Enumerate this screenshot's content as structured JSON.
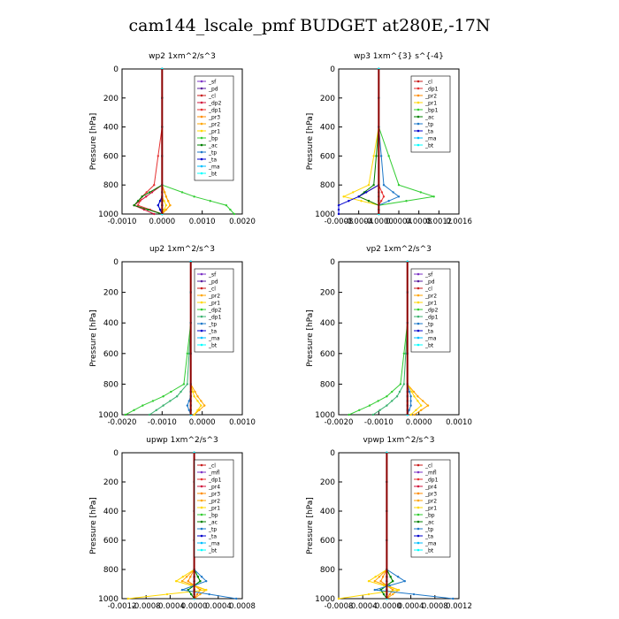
{
  "figure": {
    "title": "cam144_lscale_pmf  BUDGET at280E,-17N"
  },
  "chart_data": [
    {
      "type": "line",
      "title": "wp2   1xm^2/s^3",
      "ylabel": "Pressure [hPa]",
      "ylim": [
        1000,
        0
      ],
      "yticks": [
        "0",
        "200",
        "400",
        "600",
        "800",
        "1000"
      ],
      "xlim": [
        -0.001,
        0.002
      ],
      "xticks": [
        "-0.0010",
        "0.0000",
        "0.0010",
        "0.0020"
      ],
      "legend_position": "upper-right",
      "series": [
        {
          "name": "_sf",
          "color": "#7d33c6",
          "values": [
            0,
            0
          ]
        },
        {
          "name": "_pd",
          "color": "#5a1e9e",
          "values": [
            0,
            0
          ]
        },
        {
          "name": "_cl",
          "color": "#c81e1e",
          "values": [
            0,
            0
          ]
        },
        {
          "name": "_dp2",
          "color": "#d2143c",
          "values": [
            0,
            0,
            0,
            -0.0004,
            -0.0007,
            -0.0002
          ]
        },
        {
          "name": "_dp1",
          "color": "#e63232",
          "values": [
            0,
            0,
            -0.0002,
            -0.0005,
            -0.0006,
            0
          ]
        },
        {
          "name": "_pr3",
          "color": "#ff8c00",
          "values": [
            0,
            0,
            0,
            0.0001,
            0.0002,
            0
          ]
        },
        {
          "name": "_pr2",
          "color": "#ffa500",
          "values": [
            0,
            0,
            0,
            0.0001,
            0.0002,
            0
          ]
        },
        {
          "name": "_pr1",
          "color": "#ffd700",
          "values": [
            0,
            0,
            0,
            0,
            0.0001,
            0
          ]
        },
        {
          "name": "_bp",
          "color": "#32cd32",
          "values": [
            0,
            0,
            0,
            0.0008,
            0.0016,
            0.0018
          ]
        },
        {
          "name": "_ac",
          "color": "#008000",
          "values": [
            0,
            0,
            0,
            -0.0005,
            -0.0007,
            0
          ]
        },
        {
          "name": "_tp",
          "color": "#1e78c8",
          "values": [
            0,
            0,
            0,
            0,
            -0.0001,
            0
          ]
        },
        {
          "name": "_ta",
          "color": "#0000cd",
          "values": [
            0,
            0,
            0,
            0,
            -0.0001,
            0
          ]
        },
        {
          "name": "_ma",
          "color": "#00bfff",
          "values": [
            0,
            0
          ]
        },
        {
          "name": "_bt",
          "color": "#00ffff",
          "values": [
            0,
            0
          ]
        }
      ]
    },
    {
      "type": "line",
      "title": "wp3   1xm^{3} s^{-4}",
      "ylabel": "Pressure [hPa]",
      "ylim": [
        1000,
        0
      ],
      "yticks": [
        "0",
        "200",
        "400",
        "600",
        "800",
        "1000"
      ],
      "xlim": [
        -0.0008,
        0.0016
      ],
      "xticks": [
        "-0.0008",
        "-0.0004",
        "-0.0000",
        "0.0004",
        "0.0008",
        "0.0012",
        "0.0016"
      ],
      "legend_position": "upper-right",
      "series": [
        {
          "name": "_cl",
          "color": "#c81e1e",
          "values": [
            0,
            0
          ]
        },
        {
          "name": "_dp1",
          "color": "#e63232",
          "values": [
            0,
            0,
            0,
            0.0001,
            0
          ]
        },
        {
          "name": "_pr2",
          "color": "#ff8c00",
          "values": [
            0,
            0,
            0,
            -0.0004,
            0
          ]
        },
        {
          "name": "_pr1",
          "color": "#ffd700",
          "values": [
            0,
            0,
            -0.0002,
            -0.0007,
            0
          ]
        },
        {
          "name": "_bp1",
          "color": "#32cd32",
          "values": [
            0,
            0,
            0.0004,
            0.0011,
            0
          ]
        },
        {
          "name": "_ac",
          "color": "#008000",
          "values": [
            0,
            0,
            -0.0001,
            -0.0004,
            0
          ]
        },
        {
          "name": "_tp",
          "color": "#1e78c8",
          "values": [
            0,
            0,
            0.0001,
            0.0004,
            0
          ]
        },
        {
          "name": "_ta",
          "color": "#0000cd",
          "values": [
            0,
            0,
            0,
            -0.0004,
            -0.0008
          ]
        },
        {
          "name": "_ma",
          "color": "#00bfff",
          "values": [
            0,
            0
          ]
        },
        {
          "name": "_bt",
          "color": "#00ffff",
          "values": [
            0,
            0
          ]
        }
      ]
    },
    {
      "type": "line",
      "title": "up2   1xm^2/s^3",
      "ylabel": "Pressure [hPa]",
      "ylim": [
        1000,
        0
      ],
      "yticks": [
        "0",
        "200",
        "400",
        "600",
        "800",
        "1000"
      ],
      "xlim": [
        -0.002,
        0.0015
      ],
      "xticks": [
        "-0.0020",
        "-0.0010",
        "0.0000",
        "0.0010"
      ],
      "legend_position": "upper-right",
      "series": [
        {
          "name": "_sf",
          "color": "#7d33c6",
          "values": [
            0,
            0
          ]
        },
        {
          "name": "_pd",
          "color": "#5a1e9e",
          "values": [
            0,
            0
          ]
        },
        {
          "name": "_cl",
          "color": "#c81e1e",
          "values": [
            0,
            0
          ]
        },
        {
          "name": "_pr2",
          "color": "#ffa500",
          "values": [
            0,
            0,
            0,
            0.0002,
            0.0004,
            0.0001
          ]
        },
        {
          "name": "_pr1",
          "color": "#ffd700",
          "values": [
            0,
            0,
            0,
            0.0001,
            0.0003,
            0.0001
          ]
        },
        {
          "name": "_dp2",
          "color": "#32cd32",
          "values": [
            0,
            0,
            -0.0002,
            -0.0008,
            -0.0014,
            -0.0019
          ]
        },
        {
          "name": "_dp1",
          "color": "#3cb371",
          "values": [
            0,
            0,
            -0.0001,
            -0.0004,
            -0.0008,
            -0.0012
          ]
        },
        {
          "name": "_tp",
          "color": "#1e78c8",
          "values": [
            0,
            0,
            0,
            0,
            -0.0001,
            0
          ]
        },
        {
          "name": "_ta",
          "color": "#0000cd",
          "values": [
            0,
            0
          ]
        },
        {
          "name": "_ma",
          "color": "#00bfff",
          "values": [
            0,
            0
          ]
        },
        {
          "name": "_bt",
          "color": "#00ffff",
          "values": [
            0,
            0
          ]
        }
      ]
    },
    {
      "type": "line",
      "title": "vp2   1xm^2/s^3",
      "ylabel": "Pressure [hPa]",
      "ylim": [
        1000,
        0
      ],
      "yticks": [
        "0",
        "200",
        "400",
        "600",
        "800",
        "1000"
      ],
      "xlim": [
        -0.002,
        0.0015
      ],
      "xticks": [
        "-0.0020",
        "-0.0010",
        "0.0000",
        "0.0010"
      ],
      "legend_position": "upper-right",
      "series": [
        {
          "name": "_sf",
          "color": "#7d33c6",
          "values": [
            0,
            0
          ]
        },
        {
          "name": "_pd",
          "color": "#5a1e9e",
          "values": [
            0,
            0
          ]
        },
        {
          "name": "_cl",
          "color": "#c81e1e",
          "values": [
            0,
            0
          ]
        },
        {
          "name": "_pr2",
          "color": "#ffa500",
          "values": [
            0,
            0,
            0,
            0.0003,
            0.0006,
            0.0002
          ]
        },
        {
          "name": "_pr1",
          "color": "#ffd700",
          "values": [
            0,
            0,
            0,
            0.0002,
            0.0004,
            0.0001
          ]
        },
        {
          "name": "_dp2",
          "color": "#32cd32",
          "values": [
            0,
            0,
            -0.0002,
            -0.0006,
            -0.0011,
            -0.0017
          ]
        },
        {
          "name": "_dp1",
          "color": "#3cb371",
          "values": [
            0,
            0,
            -0.0001,
            -0.0003,
            -0.0006,
            -0.001
          ]
        },
        {
          "name": "_tp",
          "color": "#1e78c8",
          "values": [
            0,
            0,
            0,
            0.0001,
            0.0001,
            0
          ]
        },
        {
          "name": "_ta",
          "color": "#0000cd",
          "values": [
            0,
            0
          ]
        },
        {
          "name": "_ma",
          "color": "#00bfff",
          "values": [
            0,
            0
          ]
        },
        {
          "name": "_bt",
          "color": "#00ffff",
          "values": [
            0,
            0
          ]
        }
      ]
    },
    {
      "type": "line",
      "title": "upwp   1xm^2/s^3",
      "ylabel": "Pressure [hPa]",
      "ylim": [
        1000,
        0
      ],
      "yticks": [
        "0",
        "200",
        "400",
        "600",
        "800",
        "1000"
      ],
      "xlim": [
        -0.0012,
        0.0008
      ],
      "xticks": [
        "-0.0012",
        "-0.0008",
        "-0.0004",
        "0.0000",
        "0.0004",
        "0.0008"
      ],
      "legend_position": "upper-right",
      "series": [
        {
          "name": "_cl",
          "color": "#c81e1e",
          "values": [
            0,
            0
          ]
        },
        {
          "name": "_mfl",
          "color": "#7d33c6",
          "values": [
            0,
            0
          ]
        },
        {
          "name": "_dp1",
          "color": "#e63232",
          "values": [
            0,
            0
          ]
        },
        {
          "name": "_pr4",
          "color": "#d2143c",
          "values": [
            0,
            0
          ]
        },
        {
          "name": "_pr3",
          "color": "#ff8c00",
          "values": [
            0,
            0,
            0,
            -0.0001,
            0.0001,
            0
          ]
        },
        {
          "name": "_pr2",
          "color": "#ffa500",
          "values": [
            0,
            0,
            0,
            -0.0002,
            0.0002,
            0
          ]
        },
        {
          "name": "_pr1",
          "color": "#ffd700",
          "values": [
            0,
            0,
            0,
            -0.0003,
            0.0002,
            -0.0011
          ]
        },
        {
          "name": "_bp",
          "color": "#32cd32",
          "values": [
            0,
            0,
            0,
            0.0001,
            -0.0001,
            0
          ]
        },
        {
          "name": "_ac",
          "color": "#008000",
          "values": [
            0,
            0,
            0,
            0.0001,
            -0.0001,
            0
          ]
        },
        {
          "name": "_tp",
          "color": "#1e78c8",
          "values": [
            0,
            0,
            0,
            0.0002,
            -0.0002,
            0.0007
          ]
        },
        {
          "name": "_ta",
          "color": "#0000cd",
          "values": [
            0,
            0
          ]
        },
        {
          "name": "_ma",
          "color": "#00bfff",
          "values": [
            0,
            0
          ]
        },
        {
          "name": "_bt",
          "color": "#00ffff",
          "values": [
            0,
            0
          ]
        }
      ]
    },
    {
      "type": "line",
      "title": "vpwp   1xm^2/s^3",
      "ylabel": "Pressure [hPa]",
      "ylim": [
        1000,
        0
      ],
      "yticks": [
        "0",
        "200",
        "400",
        "600",
        "800",
        "1000"
      ],
      "xlim": [
        -0.0008,
        0.0012
      ],
      "xticks": [
        "-0.0008",
        "-0.0004",
        "-0.0000",
        "0.0004",
        "0.0008",
        "0.0012"
      ],
      "legend_position": "upper-right",
      "series": [
        {
          "name": "_cl",
          "color": "#c81e1e",
          "values": [
            0,
            0
          ]
        },
        {
          "name": "_mfl",
          "color": "#7d33c6",
          "values": [
            0,
            0
          ]
        },
        {
          "name": "_dp1",
          "color": "#e63232",
          "values": [
            0,
            0
          ]
        },
        {
          "name": "_pr4",
          "color": "#d2143c",
          "values": [
            0,
            0
          ]
        },
        {
          "name": "_pr3",
          "color": "#ff8c00",
          "values": [
            0,
            0,
            0,
            -0.0001,
            0.0001,
            0
          ]
        },
        {
          "name": "_pr2",
          "color": "#ffa500",
          "values": [
            0,
            0,
            0,
            -0.0002,
            0.0002,
            0
          ]
        },
        {
          "name": "_pr1",
          "color": "#ffd700",
          "values": [
            0,
            0,
            0,
            -0.0003,
            0.0002,
            -0.0008
          ]
        },
        {
          "name": "_bp",
          "color": "#32cd32",
          "values": [
            0,
            0,
            0,
            0.0001,
            -0.0001,
            0
          ]
        },
        {
          "name": "_ac",
          "color": "#008000",
          "values": [
            0,
            0,
            0,
            0.0001,
            -0.0001,
            0
          ]
        },
        {
          "name": "_tp",
          "color": "#1e78c8",
          "values": [
            0,
            0,
            0,
            0.0003,
            -0.0002,
            0.0011
          ]
        },
        {
          "name": "_ta",
          "color": "#0000cd",
          "values": [
            0,
            0
          ]
        },
        {
          "name": "_ma",
          "color": "#00bfff",
          "values": [
            0,
            0
          ]
        },
        {
          "name": "_bt",
          "color": "#00ffff",
          "values": [
            0,
            0
          ]
        }
      ]
    }
  ]
}
